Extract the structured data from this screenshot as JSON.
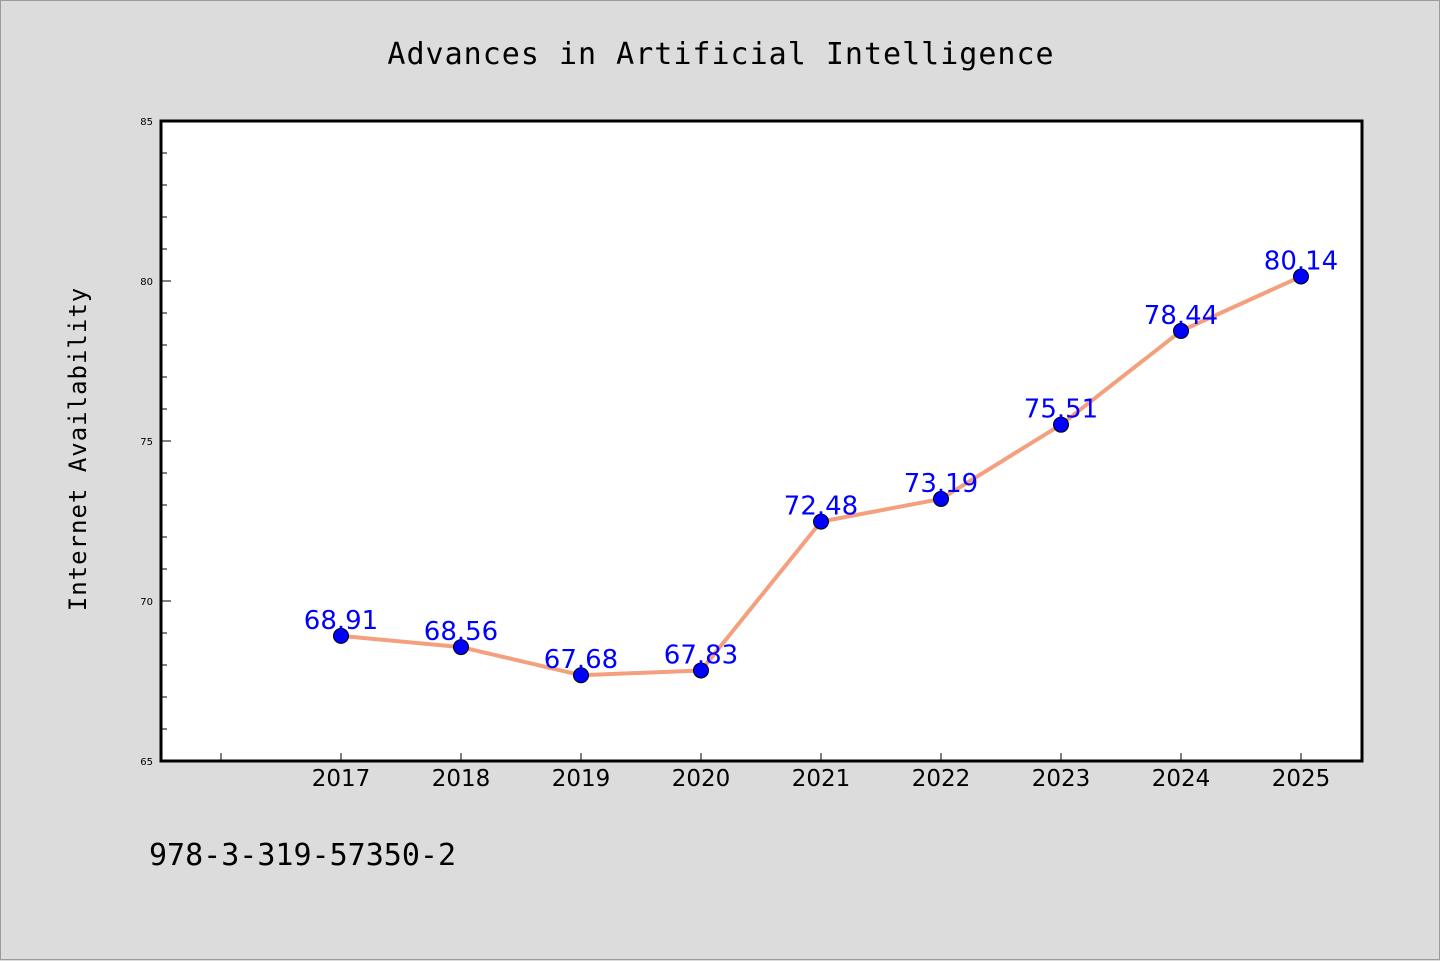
{
  "chart_data": {
    "type": "line",
    "title": "Advances in Artificial Intelligence",
    "xlabel": "",
    "ylabel": "Internet Availability",
    "categories": [
      "2017",
      "2018",
      "2019",
      "2020",
      "2021",
      "2022",
      "2023",
      "2024",
      "2025"
    ],
    "series": [
      {
        "values": [
          68.91,
          68.56,
          67.68,
          67.83,
          72.48,
          73.19,
          75.51,
          78.44,
          80.14
        ],
        "data_labels": [
          "68.91",
          "68.56",
          "67.68",
          "67.83",
          "72.48",
          "73.19",
          "75.51",
          "78.44",
          "80.14"
        ]
      }
    ],
    "ylim": [
      65,
      85
    ],
    "yticks": [
      "65",
      "70",
      "75",
      "80",
      "85"
    ],
    "grid": false,
    "legend": "none",
    "colors": {
      "line": "#f4a07e",
      "marker": "#0000ff",
      "label": "#0000ff",
      "background": "#dcdcdc",
      "plot_area": "#ffffff"
    }
  },
  "annotation": {
    "text": "978-3-319-57350-2"
  }
}
